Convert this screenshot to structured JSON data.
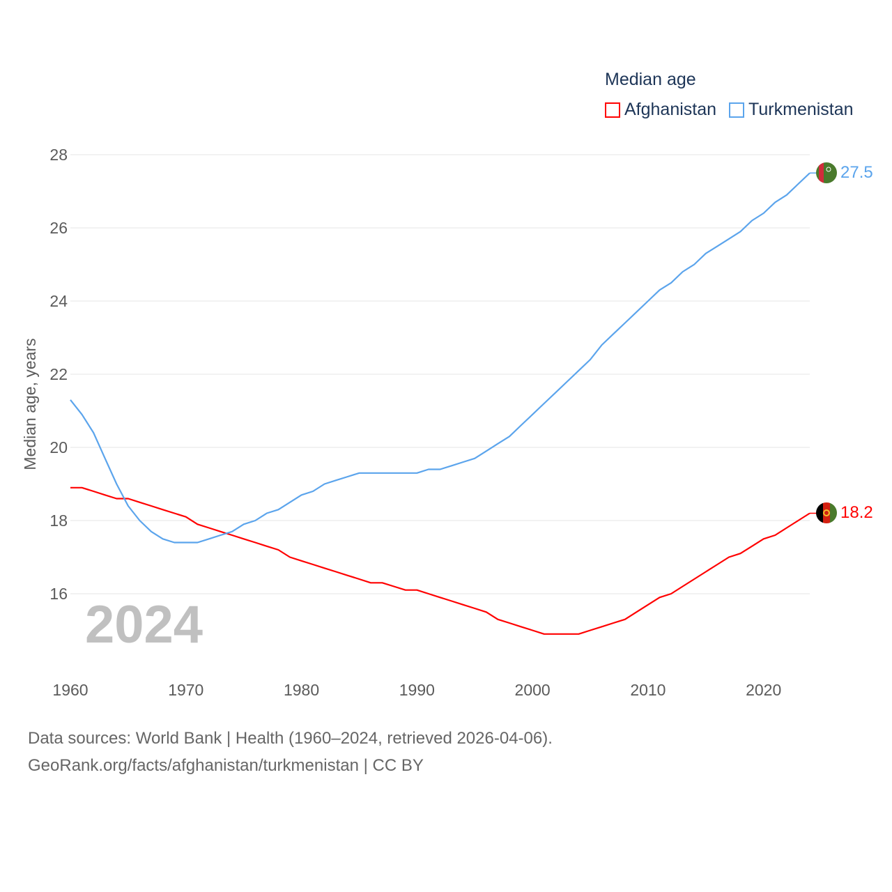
{
  "chart_data": {
    "type": "line",
    "title": "Median age",
    "xlabel": "",
    "ylabel": "Median age, years",
    "xlim": [
      1960,
      2024
    ],
    "ylim": [
      14.5,
      28.5
    ],
    "x_ticks": [
      "1960",
      "1970",
      "1980",
      "1990",
      "2000",
      "2010",
      "2020"
    ],
    "y_ticks": [
      "16",
      "18",
      "20",
      "22",
      "24",
      "26",
      "28"
    ],
    "grid": true,
    "legend_placement": "top-right",
    "year_watermark": "2024",
    "x": [
      1960,
      1961,
      1962,
      1963,
      1964,
      1965,
      1966,
      1967,
      1968,
      1969,
      1970,
      1971,
      1972,
      1973,
      1974,
      1975,
      1976,
      1977,
      1978,
      1979,
      1980,
      1981,
      1982,
      1983,
      1984,
      1985,
      1986,
      1987,
      1988,
      1989,
      1990,
      1991,
      1992,
      1993,
      1994,
      1995,
      1996,
      1997,
      1998,
      1999,
      2000,
      2001,
      2002,
      2003,
      2004,
      2005,
      2006,
      2007,
      2008,
      2009,
      2010,
      2011,
      2012,
      2013,
      2014,
      2015,
      2016,
      2017,
      2018,
      2019,
      2020,
      2021,
      2022,
      2023,
      2024
    ],
    "series": [
      {
        "name": "Afghanistan",
        "color": "#ff0000",
        "end_label": "18.2",
        "values": [
          18.9,
          18.9,
          18.8,
          18.7,
          18.6,
          18.6,
          18.5,
          18.4,
          18.3,
          18.2,
          18.1,
          17.9,
          17.8,
          17.7,
          17.6,
          17.5,
          17.4,
          17.3,
          17.2,
          17.0,
          16.9,
          16.8,
          16.7,
          16.6,
          16.5,
          16.4,
          16.3,
          16.3,
          16.2,
          16.1,
          16.1,
          16.0,
          15.9,
          15.8,
          15.7,
          15.6,
          15.5,
          15.3,
          15.2,
          15.1,
          15.0,
          14.9,
          14.9,
          14.9,
          14.9,
          15.0,
          15.1,
          15.2,
          15.3,
          15.5,
          15.7,
          15.9,
          16.0,
          16.2,
          16.4,
          16.6,
          16.8,
          17.0,
          17.1,
          17.3,
          17.5,
          17.6,
          17.8,
          18.0,
          18.2
        ]
      },
      {
        "name": "Turkmenistan",
        "color": "#5ba4ec",
        "end_label": "27.5",
        "values": [
          21.3,
          20.9,
          20.4,
          19.7,
          19.0,
          18.4,
          18.0,
          17.7,
          17.5,
          17.4,
          17.4,
          17.4,
          17.5,
          17.6,
          17.7,
          17.9,
          18.0,
          18.2,
          18.3,
          18.5,
          18.7,
          18.8,
          19.0,
          19.1,
          19.2,
          19.3,
          19.3,
          19.3,
          19.3,
          19.3,
          19.3,
          19.4,
          19.4,
          19.5,
          19.6,
          19.7,
          19.9,
          20.1,
          20.3,
          20.6,
          20.9,
          21.2,
          21.5,
          21.8,
          22.1,
          22.4,
          22.8,
          23.1,
          23.4,
          23.7,
          24.0,
          24.3,
          24.5,
          24.8,
          25.0,
          25.3,
          25.5,
          25.7,
          25.9,
          26.2,
          26.4,
          26.7,
          26.9,
          27.2,
          27.5
        ]
      }
    ]
  },
  "footer": {
    "source_line": "Data sources: World Bank | Health (1960–2024, retrieved 2026-04-06).",
    "url_line": "GeoRank.org/facts/afghanistan/turkmenistan | CC BY"
  }
}
